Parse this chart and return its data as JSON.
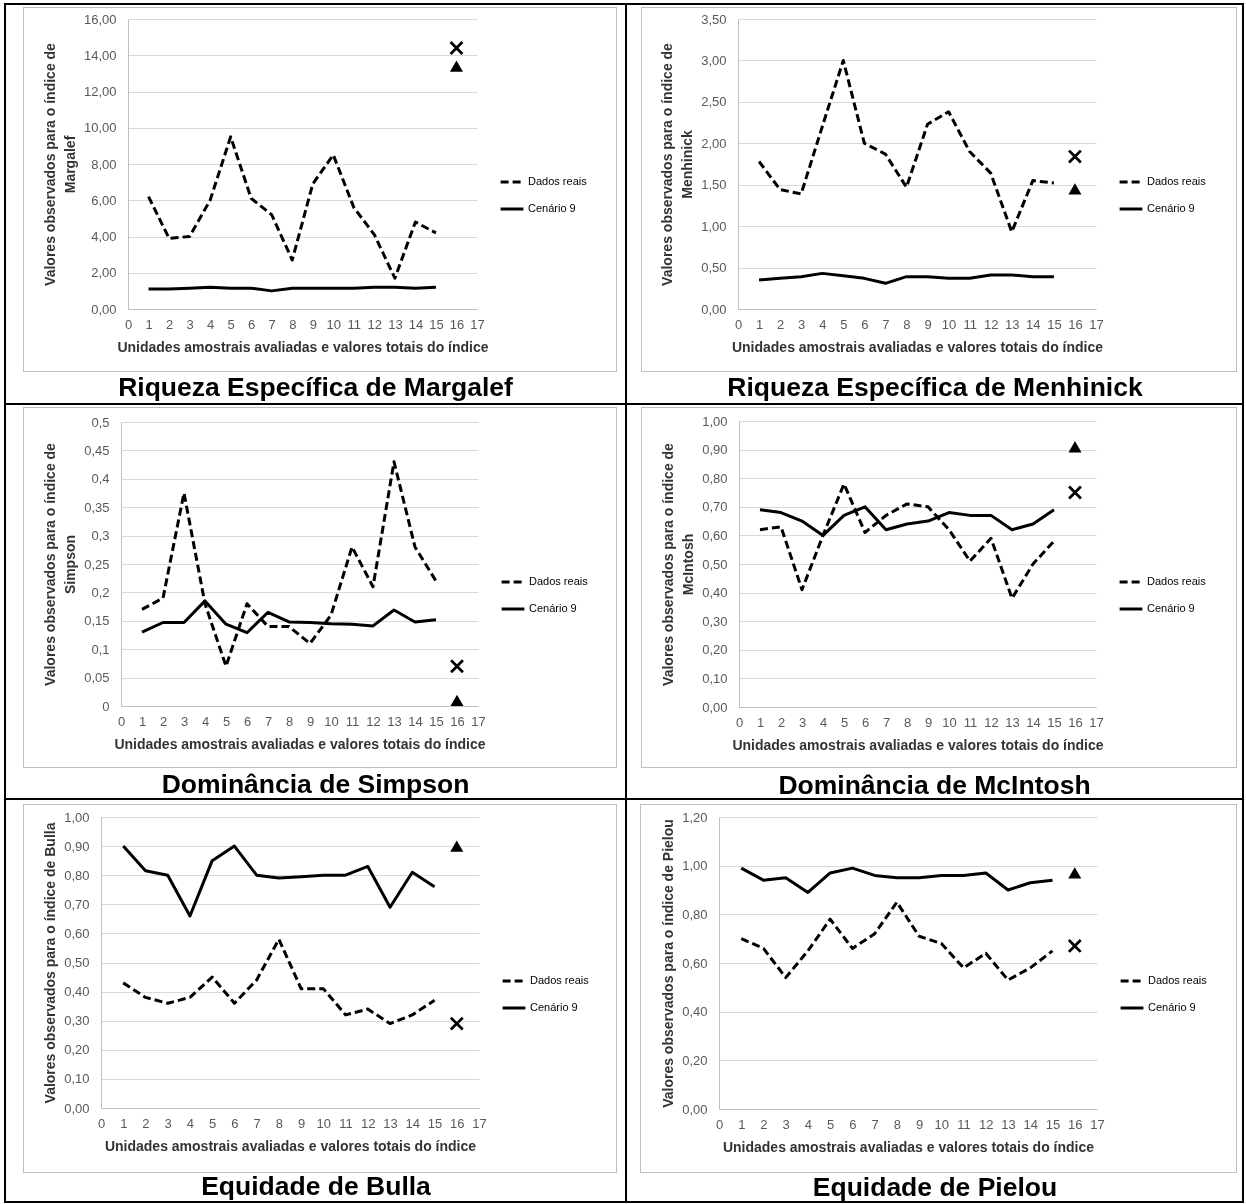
{
  "chart_data": [
    {
      "type": "line",
      "title": "Riqueza Específica de Margalef",
      "xlabel": "Unidades amostrais avaliadas e valores totais do índice",
      "ylabel": "Valores observados para o índice de Margalef",
      "x": [
        1,
        2,
        3,
        4,
        5,
        6,
        7,
        8,
        9,
        10,
        11,
        12,
        13,
        14,
        15,
        16
      ],
      "xlim": [
        0,
        17
      ],
      "xticks": [
        0,
        1,
        2,
        3,
        4,
        5,
        6,
        7,
        8,
        9,
        10,
        11,
        12,
        13,
        14,
        15,
        16,
        17
      ],
      "ylim": [
        0,
        16
      ],
      "yticks": [
        {
          "value": 0,
          "label": "0,00"
        },
        {
          "value": 2,
          "label": "2,00"
        },
        {
          "value": 4,
          "label": "4,00"
        },
        {
          "value": 6,
          "label": "6,00"
        },
        {
          "value": 8,
          "label": "8,00"
        },
        {
          "value": 10,
          "label": "10,00"
        },
        {
          "value": 12,
          "label": "12,00"
        },
        {
          "value": 14,
          "label": "14,00"
        },
        {
          "value": 16,
          "label": "16,00"
        }
      ],
      "grid": "y",
      "legend": "right",
      "series": [
        {
          "name": "Dados reais",
          "color": "#000000",
          "line_style": "dashed",
          "values": [
            6.2,
            3.9,
            4.0,
            6.0,
            9.5,
            6.1,
            5.2,
            2.7,
            6.9,
            8.5,
            5.6,
            4.1,
            1.7,
            4.8,
            4.2,
            null
          ]
        },
        {
          "name": "Cenário 9",
          "color": "#000000",
          "line_style": "solid",
          "values": [
            1.1,
            1.1,
            1.15,
            1.2,
            1.15,
            1.15,
            1.0,
            1.15,
            1.15,
            1.15,
            1.15,
            1.2,
            1.2,
            1.15,
            1.2,
            null
          ]
        },
        {
          "type": "scatter",
          "marker": "cross",
          "color": "#000000",
          "values": [
            null,
            null,
            null,
            null,
            null,
            null,
            null,
            null,
            null,
            null,
            null,
            null,
            null,
            null,
            null,
            14.4
          ]
        },
        {
          "type": "scatter",
          "marker": "triangle",
          "color": "#000000",
          "values": [
            null,
            null,
            null,
            null,
            null,
            null,
            null,
            null,
            null,
            null,
            null,
            null,
            null,
            null,
            null,
            13.4
          ]
        }
      ]
    },
    {
      "type": "line",
      "title": "Riqueza Específica de Menhinick",
      "xlabel": "Unidades amostrais avaliadas e valores totais do índice",
      "ylabel": "Valores observados para o índice de Menhinick",
      "x": [
        1,
        2,
        3,
        4,
        5,
        6,
        7,
        8,
        9,
        10,
        11,
        12,
        13,
        14,
        15,
        16
      ],
      "xlim": [
        0,
        17
      ],
      "xticks": [
        0,
        1,
        2,
        3,
        4,
        5,
        6,
        7,
        8,
        9,
        10,
        11,
        12,
        13,
        14,
        15,
        16,
        17
      ],
      "ylim": [
        0,
        3.5
      ],
      "yticks": [
        {
          "value": 0,
          "label": "0,00"
        },
        {
          "value": 0.5,
          "label": "0,50"
        },
        {
          "value": 1,
          "label": "1,00"
        },
        {
          "value": 1.5,
          "label": "1,50"
        },
        {
          "value": 2,
          "label": "2,00"
        },
        {
          "value": 2.5,
          "label": "2,50"
        },
        {
          "value": 3,
          "label": "3,00"
        },
        {
          "value": 3.5,
          "label": "3,50"
        }
      ],
      "grid": "y",
      "legend": "right",
      "series": [
        {
          "name": "Dados reais",
          "color": "#000000",
          "line_style": "dashed",
          "values": [
            1.78,
            1.44,
            1.39,
            2.2,
            3.0,
            2.0,
            1.87,
            1.47,
            2.23,
            2.38,
            1.9,
            1.64,
            0.93,
            1.55,
            1.52,
            null
          ]
        },
        {
          "name": "Cenário 9",
          "color": "#000000",
          "line_style": "solid",
          "values": [
            0.35,
            0.37,
            0.39,
            0.43,
            0.4,
            0.37,
            0.31,
            0.39,
            0.39,
            0.37,
            0.37,
            0.41,
            0.41,
            0.39,
            0.39,
            null
          ]
        },
        {
          "type": "scatter",
          "marker": "cross",
          "color": "#000000",
          "values": [
            null,
            null,
            null,
            null,
            null,
            null,
            null,
            null,
            null,
            null,
            null,
            null,
            null,
            null,
            null,
            1.84
          ]
        },
        {
          "type": "scatter",
          "marker": "triangle",
          "color": "#000000",
          "values": [
            null,
            null,
            null,
            null,
            null,
            null,
            null,
            null,
            null,
            null,
            null,
            null,
            null,
            null,
            null,
            1.45
          ]
        }
      ]
    },
    {
      "type": "line",
      "title": "Dominância de Simpson",
      "xlabel": "Unidades amostrais avaliadas e valores totais do índice",
      "ylabel": "Valores observados para o índice de Simpson",
      "x": [
        1,
        2,
        3,
        4,
        5,
        6,
        7,
        8,
        9,
        10,
        11,
        12,
        13,
        14,
        15,
        16
      ],
      "xlim": [
        0,
        17
      ],
      "xticks": [
        0,
        1,
        2,
        3,
        4,
        5,
        6,
        7,
        8,
        9,
        10,
        11,
        12,
        13,
        14,
        15,
        16,
        17
      ],
      "ylim": [
        0,
        0.5
      ],
      "yticks": [
        0,
        {
          "value": 0.05,
          "label": "0,05"
        },
        {
          "value": 0.1,
          "label": "0,1"
        },
        {
          "value": 0.15,
          "label": "0,15"
        },
        {
          "value": 0.2,
          "label": "0,2"
        },
        {
          "value": 0.25,
          "label": "0,25"
        },
        {
          "value": 0.3,
          "label": "0,3"
        },
        {
          "value": 0.35,
          "label": "0,35"
        },
        {
          "value": 0.4,
          "label": "0,4"
        },
        {
          "value": 0.45,
          "label": "0,45"
        },
        {
          "value": 0.5,
          "label": "0,5"
        }
      ],
      "grid": "y",
      "legend": "right",
      "series": [
        {
          "name": "Dados reais",
          "color": "#000000",
          "line_style": "dashed",
          "values": [
            0.17,
            0.19,
            0.375,
            0.18,
            0.07,
            0.18,
            0.14,
            0.14,
            0.11,
            0.16,
            0.28,
            0.21,
            0.43,
            0.28,
            0.22,
            null
          ]
        },
        {
          "name": "Cenário 9",
          "color": "#000000",
          "line_style": "solid",
          "values": [
            0.13,
            0.147,
            0.147,
            0.185,
            0.144,
            0.129,
            0.165,
            0.148,
            0.147,
            0.145,
            0.144,
            0.141,
            0.169,
            0.148,
            0.152,
            null
          ]
        },
        {
          "type": "scatter",
          "marker": "cross",
          "color": "#000000",
          "values": [
            null,
            null,
            null,
            null,
            null,
            null,
            null,
            null,
            null,
            null,
            null,
            null,
            null,
            null,
            null,
            0.07
          ]
        },
        {
          "type": "scatter",
          "marker": "triangle",
          "color": "#000000",
          "values": [
            null,
            null,
            null,
            null,
            null,
            null,
            null,
            null,
            null,
            null,
            null,
            null,
            null,
            null,
            null,
            0.01
          ]
        }
      ]
    },
    {
      "type": "line",
      "title": "Dominância de McIntosh",
      "xlabel": "Unidades amostrais avaliadas e valores totais do índice",
      "ylabel": "Valores observados para o índice de McIntosh",
      "x": [
        1,
        2,
        3,
        4,
        5,
        6,
        7,
        8,
        9,
        10,
        11,
        12,
        13,
        14,
        15,
        16
      ],
      "xlim": [
        0,
        17
      ],
      "xticks": [
        0,
        1,
        2,
        3,
        4,
        5,
        6,
        7,
        8,
        9,
        10,
        11,
        12,
        13,
        14,
        15,
        16,
        17
      ],
      "ylim": [
        0,
        1
      ],
      "yticks": [
        {
          "value": 0,
          "label": "0,00"
        },
        {
          "value": 0.1,
          "label": "0,10"
        },
        {
          "value": 0.2,
          "label": "0,20"
        },
        {
          "value": 0.3,
          "label": "0,30"
        },
        {
          "value": 0.4,
          "label": "0,40"
        },
        {
          "value": 0.5,
          "label": "0,50"
        },
        {
          "value": 0.6,
          "label": "0,60"
        },
        {
          "value": 0.7,
          "label": "0,70"
        },
        {
          "value": 0.8,
          "label": "0,80"
        },
        {
          "value": 0.9,
          "label": "0,90"
        },
        {
          "value": 1,
          "label": "1,00"
        }
      ],
      "grid": "y",
      "legend": "right",
      "series": [
        {
          "name": "Dados reais",
          "color": "#000000",
          "line_style": "dashed",
          "values": [
            0.62,
            0.63,
            0.41,
            0.6,
            0.78,
            0.61,
            0.67,
            0.71,
            0.7,
            0.62,
            0.51,
            0.59,
            0.38,
            0.5,
            0.58,
            null
          ]
        },
        {
          "name": "Cenário 9",
          "color": "#000000",
          "line_style": "solid",
          "values": [
            0.69,
            0.68,
            0.65,
            0.6,
            0.67,
            0.7,
            0.62,
            0.64,
            0.65,
            0.68,
            0.67,
            0.67,
            0.62,
            0.64,
            0.69,
            null
          ]
        },
        {
          "type": "scatter",
          "marker": "cross",
          "color": "#000000",
          "values": [
            null,
            null,
            null,
            null,
            null,
            null,
            null,
            null,
            null,
            null,
            null,
            null,
            null,
            null,
            null,
            0.75
          ]
        },
        {
          "type": "scatter",
          "marker": "triangle",
          "color": "#000000",
          "values": [
            null,
            null,
            null,
            null,
            null,
            null,
            null,
            null,
            null,
            null,
            null,
            null,
            null,
            null,
            null,
            0.91
          ]
        }
      ]
    },
    {
      "type": "line",
      "title": "Equidade de Bulla",
      "xlabel": "Unidades amostrais avaliadas e valores totais do índice",
      "ylabel": "Valores observados para o índice de Bulla",
      "x": [
        1,
        2,
        3,
        4,
        5,
        6,
        7,
        8,
        9,
        10,
        11,
        12,
        13,
        14,
        15,
        16
      ],
      "xlim": [
        0,
        17
      ],
      "xticks": [
        0,
        1,
        2,
        3,
        4,
        5,
        6,
        7,
        8,
        9,
        10,
        11,
        12,
        13,
        14,
        15,
        16,
        17
      ],
      "ylim": [
        0,
        1
      ],
      "yticks": [
        {
          "value": 0,
          "label": "0,00"
        },
        {
          "value": 0.1,
          "label": "0,10"
        },
        {
          "value": 0.2,
          "label": "0,20"
        },
        {
          "value": 0.3,
          "label": "0,30"
        },
        {
          "value": 0.4,
          "label": "0,40"
        },
        {
          "value": 0.5,
          "label": "0,50"
        },
        {
          "value": 0.6,
          "label": "0,60"
        },
        {
          "value": 0.7,
          "label": "0,70"
        },
        {
          "value": 0.8,
          "label": "0,80"
        },
        {
          "value": 0.9,
          "label": "0,90"
        },
        {
          "value": 1,
          "label": "1,00"
        }
      ],
      "grid": "y",
      "legend": "right",
      "series": [
        {
          "name": "Dados reais",
          "color": "#000000",
          "line_style": "dashed",
          "values": [
            0.43,
            0.38,
            0.36,
            0.38,
            0.45,
            0.36,
            0.44,
            0.58,
            0.41,
            0.41,
            0.32,
            0.34,
            0.29,
            0.32,
            0.37,
            null
          ]
        },
        {
          "name": "Cenário 9",
          "color": "#000000",
          "line_style": "solid",
          "values": [
            0.9,
            0.815,
            0.8,
            0.66,
            0.85,
            0.9,
            0.8,
            0.79,
            0.795,
            0.8,
            0.8,
            0.83,
            0.69,
            0.81,
            0.76,
            null
          ]
        },
        {
          "type": "scatter",
          "marker": "cross",
          "color": "#000000",
          "values": [
            null,
            null,
            null,
            null,
            null,
            null,
            null,
            null,
            null,
            null,
            null,
            null,
            null,
            null,
            null,
            0.29
          ]
        },
        {
          "type": "scatter",
          "marker": "triangle",
          "color": "#000000",
          "values": [
            null,
            null,
            null,
            null,
            null,
            null,
            null,
            null,
            null,
            null,
            null,
            null,
            null,
            null,
            null,
            0.9
          ]
        }
      ]
    },
    {
      "type": "line",
      "title": "Equidade de Pielou",
      "xlabel": "Unidades amostrais avaliadas e valores totais do índice",
      "ylabel": "Valores observados para o índice de Pielou",
      "x": [
        1,
        2,
        3,
        4,
        5,
        6,
        7,
        8,
        9,
        10,
        11,
        12,
        13,
        14,
        15,
        16
      ],
      "xlim": [
        0,
        17
      ],
      "xticks": [
        0,
        1,
        2,
        3,
        4,
        5,
        6,
        7,
        8,
        9,
        10,
        11,
        12,
        13,
        14,
        15,
        16,
        17
      ],
      "ylim": [
        0,
        1.2
      ],
      "yticks": [
        {
          "value": 0,
          "label": "0,00"
        },
        {
          "value": 0.2,
          "label": "0,20"
        },
        {
          "value": 0.4,
          "label": "0,40"
        },
        {
          "value": 0.6,
          "label": "0,60"
        },
        {
          "value": 0.8,
          "label": "0,80"
        },
        {
          "value": 1,
          "label": "1,00"
        },
        {
          "value": 1.2,
          "label": "1,20"
        }
      ],
      "grid": "y",
      "legend": "right",
      "series": [
        {
          "name": "Dados reais",
          "color": "#000000",
          "line_style": "dashed",
          "values": [
            0.7,
            0.66,
            0.54,
            0.65,
            0.78,
            0.66,
            0.72,
            0.85,
            0.71,
            0.68,
            0.58,
            0.64,
            0.53,
            0.58,
            0.65,
            null
          ]
        },
        {
          "name": "Cenário 9",
          "color": "#000000",
          "line_style": "solid",
          "values": [
            0.99,
            0.94,
            0.95,
            0.89,
            0.97,
            0.99,
            0.96,
            0.95,
            0.95,
            0.96,
            0.96,
            0.97,
            0.9,
            0.93,
            0.94,
            null
          ]
        },
        {
          "type": "scatter",
          "marker": "cross",
          "color": "#000000",
          "values": [
            null,
            null,
            null,
            null,
            null,
            null,
            null,
            null,
            null,
            null,
            null,
            null,
            null,
            null,
            null,
            0.67
          ]
        },
        {
          "type": "scatter",
          "marker": "triangle",
          "color": "#000000",
          "values": [
            null,
            null,
            null,
            null,
            null,
            null,
            null,
            null,
            null,
            null,
            null,
            null,
            null,
            null,
            null,
            0.97
          ]
        }
      ]
    }
  ]
}
